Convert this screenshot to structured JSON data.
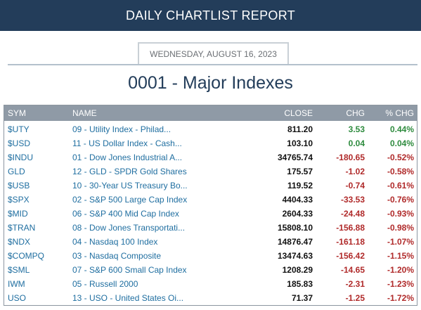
{
  "header": {
    "title": "DAILY CHARTLIST REPORT"
  },
  "report": {
    "date": "WEDNESDAY, AUGUST 16, 2023",
    "list_title": "0001 - Major Indexes"
  },
  "table": {
    "columns": {
      "sym": "SYM",
      "name": "NAME",
      "close": "CLOSE",
      "chg": "CHG",
      "pct": "% CHG"
    },
    "colors": {
      "positive": "#2e8b3e",
      "negative": "#b02a2a",
      "link": "#1f6ea0"
    },
    "rows": [
      {
        "sym": "$UTY",
        "name": "09 - Utility Index - Philad...",
        "close": "811.20",
        "chg": "3.53",
        "pct": "0.44%",
        "dir": "pos"
      },
      {
        "sym": "$USD",
        "name": "11 - US Dollar Index - Cash...",
        "close": "103.10",
        "chg": "0.04",
        "pct": "0.04%",
        "dir": "pos"
      },
      {
        "sym": "$INDU",
        "name": "01 - Dow Jones Industrial A...",
        "close": "34765.74",
        "chg": "-180.65",
        "pct": "-0.52%",
        "dir": "neg"
      },
      {
        "sym": "GLD",
        "name": "12 - GLD - SPDR Gold Shares",
        "close": "175.57",
        "chg": "-1.02",
        "pct": "-0.58%",
        "dir": "neg"
      },
      {
        "sym": "$USB",
        "name": "10 - 30-Year US Treasury Bo...",
        "close": "119.52",
        "chg": "-0.74",
        "pct": "-0.61%",
        "dir": "neg"
      },
      {
        "sym": "$SPX",
        "name": "02 - S&P 500 Large Cap Index",
        "close": "4404.33",
        "chg": "-33.53",
        "pct": "-0.76%",
        "dir": "neg"
      },
      {
        "sym": "$MID",
        "name": "06 - S&P 400 Mid Cap Index",
        "close": "2604.33",
        "chg": "-24.48",
        "pct": "-0.93%",
        "dir": "neg"
      },
      {
        "sym": "$TRAN",
        "name": "08 - Dow Jones Transportati...",
        "close": "15808.10",
        "chg": "-156.88",
        "pct": "-0.98%",
        "dir": "neg"
      },
      {
        "sym": "$NDX",
        "name": "04 - Nasdaq 100 Index",
        "close": "14876.47",
        "chg": "-161.18",
        "pct": "-1.07%",
        "dir": "neg"
      },
      {
        "sym": "$COMPQ",
        "name": "03 - Nasdaq Composite",
        "close": "13474.63",
        "chg": "-156.42",
        "pct": "-1.15%",
        "dir": "neg"
      },
      {
        "sym": "$SML",
        "name": "07 - S&P 600 Small Cap Index",
        "close": "1208.29",
        "chg": "-14.65",
        "pct": "-1.20%",
        "dir": "neg"
      },
      {
        "sym": "IWM",
        "name": "05 - Russell 2000",
        "close": "185.83",
        "chg": "-2.31",
        "pct": "-1.23%",
        "dir": "neg"
      },
      {
        "sym": "USO",
        "name": "13 - USO - United States Oi...",
        "close": "71.37",
        "chg": "-1.25",
        "pct": "-1.72%",
        "dir": "neg"
      }
    ]
  }
}
